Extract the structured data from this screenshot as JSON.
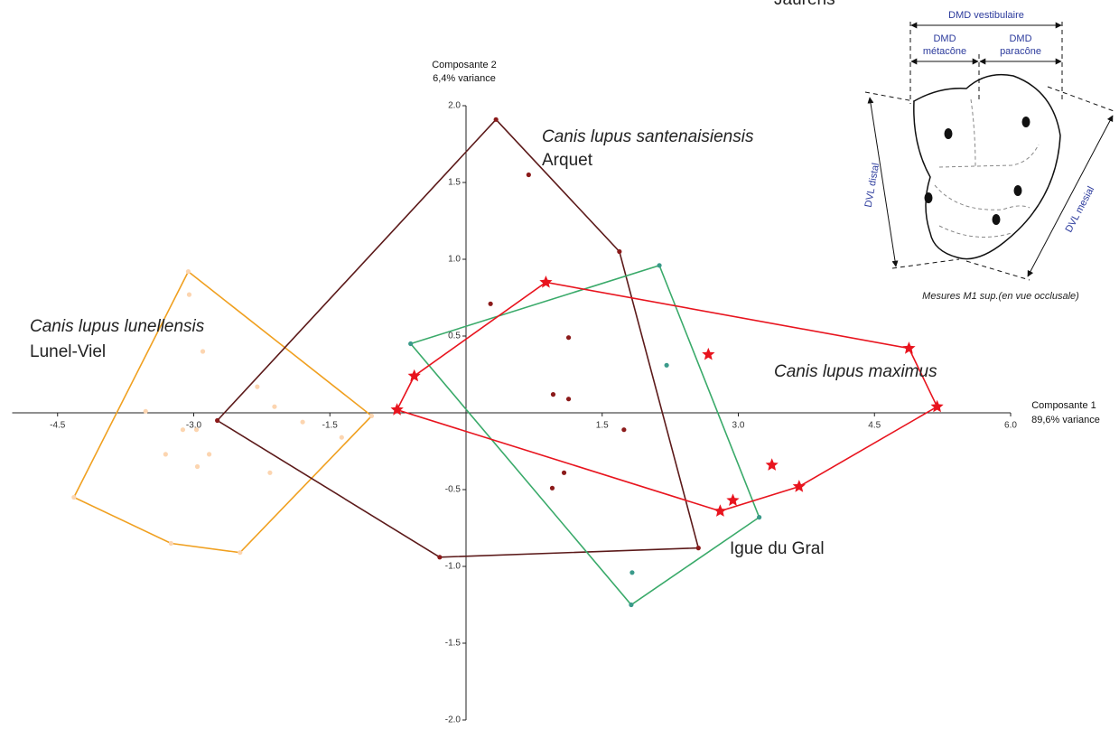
{
  "chart_data": {
    "type": "scatter",
    "xlabel": [
      "Composante 1",
      "89,6% variance"
    ],
    "ylabel": [
      "Composante 2",
      "6,4% variance"
    ],
    "xlim": [
      -5.0,
      6.0
    ],
    "ylim": [
      -2.0,
      2.0
    ],
    "xticks": [
      -4.5,
      {
        "value": -3.0,
        "label": "-3.0"
      },
      -1.5,
      1.5,
      {
        "value": 3.0,
        "label": "3.0"
      },
      4.5,
      {
        "value": 6.0,
        "label": "6.0"
      }
    ],
    "yticks": [
      {
        "value": 2.0,
        "label": "2.0"
      },
      1.5,
      {
        "value": 1.0,
        "label": "1.0"
      },
      0.5,
      -0.5,
      {
        "value": -1.0,
        "label": "-1.0"
      },
      -1.5,
      {
        "value": -2.0,
        "label": "-2.0"
      }
    ],
    "series": [
      {
        "name": "Canis lupus lunellensis",
        "site": "Lunel-Viel",
        "color": "#fcd5b0",
        "hull_color": "#f0a020",
        "label_color": "#8a5a2a",
        "marker": "circle",
        "x": [
          -3.05,
          -2.9,
          -2.3,
          -2.11,
          -1.8,
          -1.37,
          -3.53,
          -3.12,
          -2.97,
          -2.83,
          -3.31,
          -2.96,
          -2.16,
          -3.06,
          -1.04,
          -2.49,
          -3.25,
          -4.32
        ],
        "y": [
          0.77,
          0.4,
          0.17,
          0.04,
          -0.06,
          -0.16,
          0.01,
          -0.11,
          -0.11,
          -0.27,
          -0.27,
          -0.35,
          -0.39,
          0.92,
          -0.02,
          -0.91,
          -0.85,
          -0.55
        ]
      },
      {
        "name": "Canis lupus santenaisiensis",
        "site": "Arquet",
        "color": "#8b1a1a",
        "hull_color": "#5c1a1a",
        "label_color": "#7a1a1a",
        "marker": "circle",
        "x": [
          0.33,
          1.69,
          2.56,
          -0.29,
          -2.74,
          0.69,
          0.27,
          1.13,
          0.96,
          1.13,
          1.74,
          1.08,
          0.95
        ],
        "y": [
          1.91,
          1.05,
          -0.88,
          -0.94,
          -0.05,
          1.55,
          0.71,
          0.49,
          0.12,
          0.09,
          -0.11,
          -0.39,
          -0.49
        ]
      },
      {
        "name": "Canis lupus maximus",
        "site": "Jaurens",
        "color": "#3a9a8a",
        "hull_color": "#3aaa6a",
        "label_color": "#1a8a4a",
        "marker": "circle",
        "x": [
          -0.61,
          2.13,
          3.23,
          1.82,
          2.21,
          1.83
        ],
        "y": [
          0.45,
          0.96,
          -0.68,
          -1.25,
          0.31,
          -1.04
        ]
      },
      {
        "name": "Igue du Gral",
        "color": "#e8141e",
        "hull_color": "#e8141e",
        "label_color": "#e8141e",
        "marker": "star",
        "x": [
          0.88,
          2.67,
          4.88,
          5.19,
          3.37,
          3.67,
          2.94,
          2.8,
          -0.76,
          -0.57
        ],
        "y": [
          0.85,
          0.38,
          0.42,
          0.04,
          -0.34,
          -0.48,
          -0.57,
          -0.64,
          0.02,
          0.24
        ]
      }
    ]
  },
  "inset": {
    "top": "DMD vestibulaire",
    "left": [
      "DMD",
      "métacône"
    ],
    "right": [
      "DMD",
      "paracône"
    ],
    "distal": "DVL distal",
    "mesial": "DVL mesial",
    "caption": "Mesures M1 sup.(en vue occlusale)"
  }
}
